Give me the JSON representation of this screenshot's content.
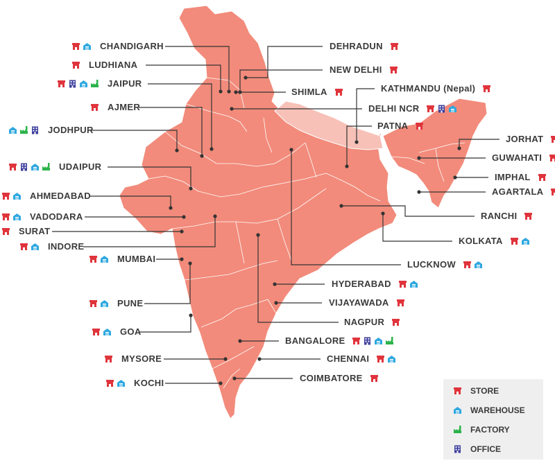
{
  "colors": {
    "india": "#f28b7b",
    "nepal": "#f7c1b8",
    "border": "#ffffff",
    "line": "#333333",
    "store": "#e0343c",
    "warehouse": "#2fa8e0",
    "factory": "#2bb34a",
    "office": "#3e3f9c"
  },
  "icon_names": {
    "store": "store-icon",
    "warehouse": "warehouse-icon",
    "factory": "factory-icon",
    "office": "office-icon"
  },
  "legend": {
    "items": [
      {
        "type": "store",
        "label": "STORE"
      },
      {
        "type": "warehouse",
        "label": "WAREHOUSE"
      },
      {
        "type": "factory",
        "label": "FACTORY"
      },
      {
        "type": "office",
        "label": "OFFICE"
      }
    ]
  },
  "locations": [
    {
      "id": "chandigarh",
      "name": "CHANDIGARH",
      "icons": [
        "store",
        "warehouse"
      ]
    },
    {
      "id": "ludhiana",
      "name": "LUDHIANA",
      "icons": [
        "store"
      ]
    },
    {
      "id": "jaipur",
      "name": "JAIPUR",
      "icons": [
        "store",
        "office",
        "warehouse",
        "factory"
      ]
    },
    {
      "id": "ajmer",
      "name": "AJMER",
      "icons": [
        "store"
      ]
    },
    {
      "id": "jodhpur",
      "name": "JODHPUR",
      "icons": [
        "warehouse",
        "factory",
        "office"
      ]
    },
    {
      "id": "udaipur",
      "name": "UDAIPUR",
      "icons": [
        "store",
        "office",
        "warehouse",
        "factory"
      ]
    },
    {
      "id": "ahmedabad",
      "name": "AHMEDABAD",
      "icons": [
        "store",
        "warehouse"
      ]
    },
    {
      "id": "vadodara",
      "name": "VADODARA",
      "icons": [
        "store",
        "warehouse"
      ]
    },
    {
      "id": "surat",
      "name": "SURAT",
      "icons": [
        "store"
      ]
    },
    {
      "id": "indore",
      "name": "INDORE",
      "icons": [
        "store",
        "warehouse"
      ]
    },
    {
      "id": "mumbai",
      "name": "MUMBAI",
      "icons": [
        "store",
        "warehouse"
      ]
    },
    {
      "id": "pune",
      "name": "PUNE",
      "icons": [
        "store",
        "warehouse"
      ]
    },
    {
      "id": "goa",
      "name": "GOA",
      "icons": [
        "store",
        "warehouse"
      ]
    },
    {
      "id": "mysore",
      "name": "MYSORE",
      "icons": [
        "store"
      ]
    },
    {
      "id": "kochi",
      "name": "KOCHI",
      "icons": [
        "store",
        "warehouse"
      ]
    },
    {
      "id": "dehradun",
      "name": "DEHRADUN",
      "icons": [
        "store"
      ]
    },
    {
      "id": "new-delhi",
      "name": "NEW DELHI",
      "icons": [
        "store"
      ]
    },
    {
      "id": "shimla",
      "name": "SHIMLA",
      "icons": [
        "store"
      ]
    },
    {
      "id": "kathmandu",
      "name": "KATHMANDU (Nepal)",
      "icons": [
        "store"
      ]
    },
    {
      "id": "delhi-ncr",
      "name": "DELHI NCR",
      "icons": [
        "store",
        "office",
        "warehouse"
      ]
    },
    {
      "id": "patna",
      "name": "PATNA",
      "icons": [
        "store"
      ]
    },
    {
      "id": "jorhat",
      "name": "JORHAT",
      "icons": [
        "store"
      ]
    },
    {
      "id": "guwahati",
      "name": "GUWAHATI",
      "icons": [
        "store"
      ]
    },
    {
      "id": "imphal",
      "name": "IMPHAL",
      "icons": [
        "store"
      ]
    },
    {
      "id": "agartala",
      "name": "AGARTALA",
      "icons": [
        "store"
      ]
    },
    {
      "id": "ranchi",
      "name": "RANCHI",
      "icons": [
        "store"
      ]
    },
    {
      "id": "kolkata",
      "name": "KOLKATA",
      "icons": [
        "store",
        "warehouse"
      ]
    },
    {
      "id": "lucknow",
      "name": "LUCKNOW",
      "icons": [
        "store",
        "warehouse"
      ]
    },
    {
      "id": "hyderabad",
      "name": "HYDERABAD",
      "icons": [
        "store",
        "warehouse"
      ]
    },
    {
      "id": "vijayawada",
      "name": "VIJAYAWADA",
      "icons": [
        "store"
      ]
    },
    {
      "id": "nagpur",
      "name": "NAGPUR",
      "icons": [
        "store"
      ]
    },
    {
      "id": "bangalore",
      "name": "BANGALORE",
      "icons": [
        "store",
        "office",
        "warehouse",
        "factory"
      ]
    },
    {
      "id": "chennai",
      "name": "CHENNAI",
      "icons": [
        "store",
        "warehouse"
      ]
    },
    {
      "id": "coimbatore",
      "name": "COIMBATORE",
      "icons": [
        "store"
      ]
    }
  ]
}
